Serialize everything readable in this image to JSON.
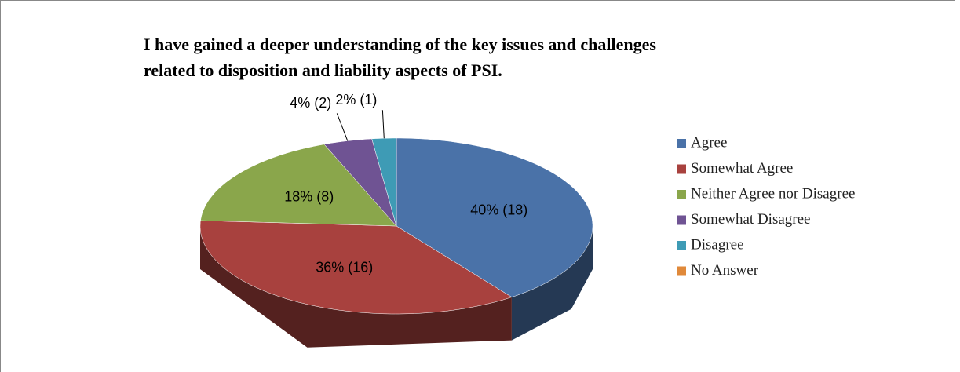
{
  "chart_data": {
    "type": "pie",
    "title": "I have gained a deeper understanding of the key issues and challenges related to disposition and liability aspects of PSI.",
    "categories": [
      "Agree",
      "Somewhat Agree",
      "Neither Agree nor Disagree",
      "Somewhat Disagree",
      "Disagree",
      "No Answer"
    ],
    "values": [
      40,
      36,
      18,
      4,
      2,
      0
    ],
    "value_labels": [
      "40% (18)",
      "36% (16)",
      "18% (8)",
      "4% (2)",
      "2% (1)",
      null
    ],
    "colors": [
      "#4a72a8",
      "#a8413e",
      "#8aa64b",
      "#6f5393",
      "#3e9bb5",
      "#e0893a"
    ],
    "legend": "right"
  }
}
